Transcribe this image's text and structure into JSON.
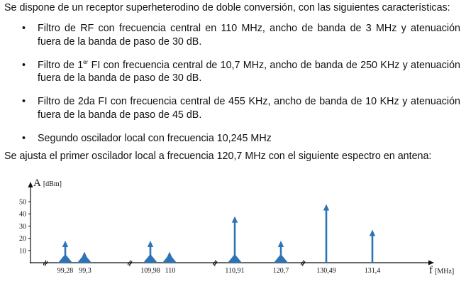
{
  "document": {
    "intro": "Se dispone de un receptor superheterodino de doble conversión, con las siguientes características:",
    "bullets": [
      {
        "line1": "Filtro de RF con frecuencia central en 110 MHz, ancho de banda de 3 MHz y atenuación",
        "line2": "fuera de la banda de paso de 30 dB."
      },
      {
        "line1_a": "Filtro de 1",
        "line1_sup": "er",
        "line1_b": " FI con frecuencia central de 10,7 MHz, ancho de banda de 250 KHz y atenuación",
        "line2": "fuera de la banda de paso de 30 dB."
      },
      {
        "line1": "Filtro de 2da FI con frecuencia central de 455 KHz, ancho de banda de 10 KHz y atenuación",
        "line2": "fuera de la banda de paso de 45 dB."
      },
      {
        "line1": "Segundo oscilador local con frecuencia 10,245 MHz"
      }
    ],
    "bullet_symbol": "•",
    "outro": "Se ajusta el primer oscilador local a frecuencia 120,7 MHz con el siguiente espectro en antena:"
  },
  "chart_data": {
    "type": "bar",
    "title": "",
    "ylabel_main": "A",
    "ylabel_unit": "[dBm]",
    "xlabel_main": "f",
    "xlabel_unit": "[MHz]",
    "yticks": [
      10,
      20,
      30,
      40,
      50
    ],
    "ylim": [
      0,
      60
    ],
    "axis_break_symbol": "≈",
    "arrow_color": "#2e74b5",
    "categories": [
      "99,28",
      "99,3",
      "109,98",
      "110",
      "110,91",
      "120,7",
      "130,49",
      "131,4"
    ],
    "values": [
      18,
      9,
      18,
      9,
      38,
      18,
      48,
      27
    ],
    "modulated": [
      true,
      true,
      true,
      true,
      true,
      true,
      false,
      false
    ]
  }
}
